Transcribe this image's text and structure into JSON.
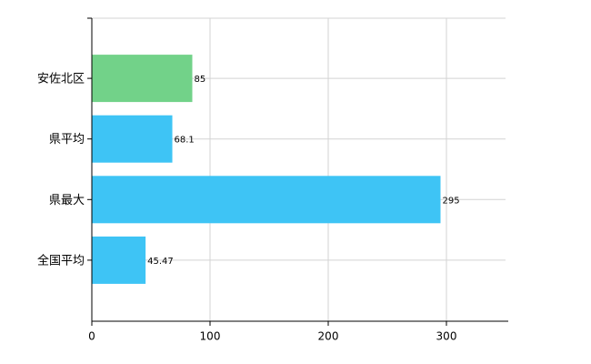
{
  "chart_data": {
    "type": "barh",
    "categories": [
      "安佐北区",
      "県平均",
      "県最大",
      "全国平均"
    ],
    "values": [
      85,
      68.1,
      295,
      45.47
    ],
    "colors": [
      "#72d289",
      "#3ec4f5",
      "#3ec4f5",
      "#3ec4f5"
    ],
    "xlim": [
      0,
      350
    ],
    "xticks": [
      0,
      100,
      200,
      300
    ],
    "grid": true
  }
}
